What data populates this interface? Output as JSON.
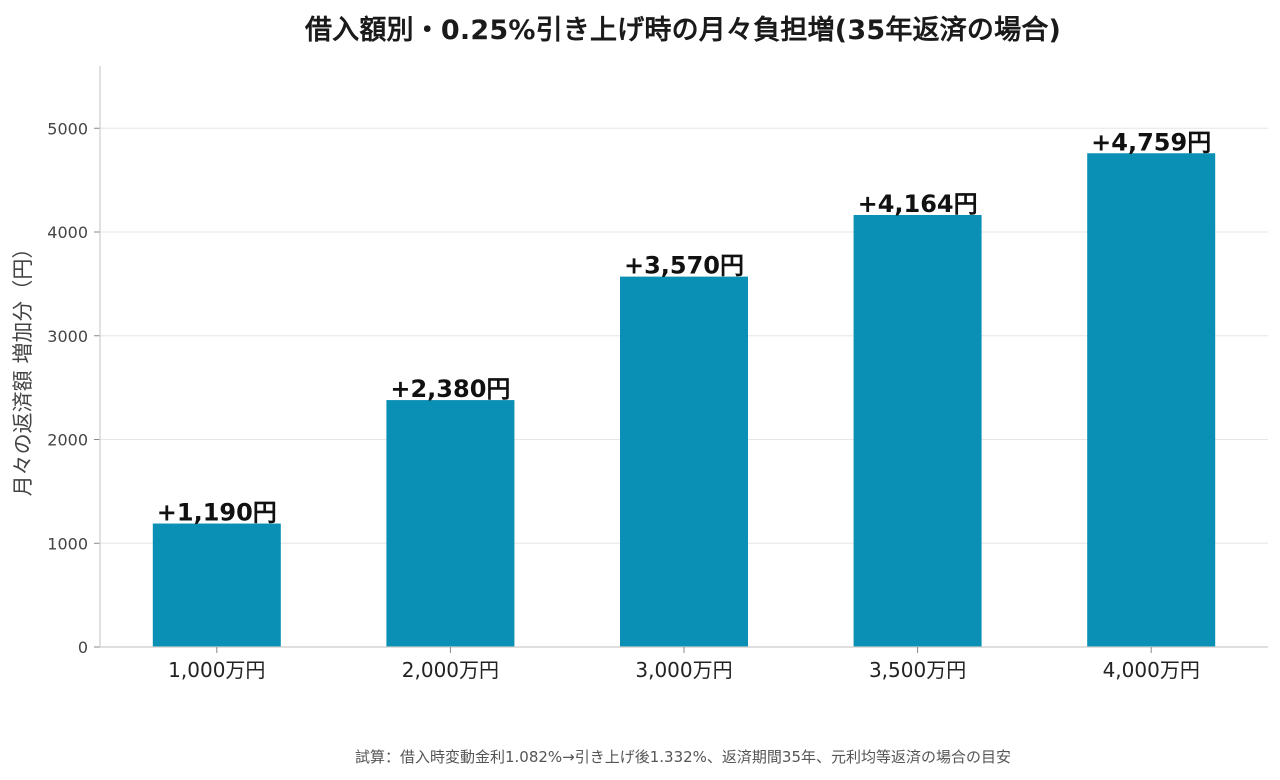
{
  "chart_data": {
    "type": "bar",
    "title": "借入額別・0.25%引き上げ時の月々負担増(35年返済の場合)",
    "xlabel": "",
    "ylabel": "月々の返済額 増加分（円）",
    "categories": [
      "1,000万円",
      "2,000万円",
      "3,000万円",
      "3,500万円",
      "4,000万円"
    ],
    "values": [
      1190,
      2380,
      3570,
      4164,
      4759
    ],
    "data_labels": [
      "+1,190円",
      "+2,380円",
      "+3,570円",
      "+4,164円",
      "+4,759円"
    ],
    "yticks": [
      0,
      1000,
      2000,
      3000,
      4000,
      5000
    ],
    "ylim": [
      0,
      5600
    ],
    "grid": true,
    "bar_color": "#0a90b4",
    "footnote": "試算：借入時変動金利1.082%→引き上げ後1.332%、返済期間35年、元利均等返済の場合の目安"
  }
}
